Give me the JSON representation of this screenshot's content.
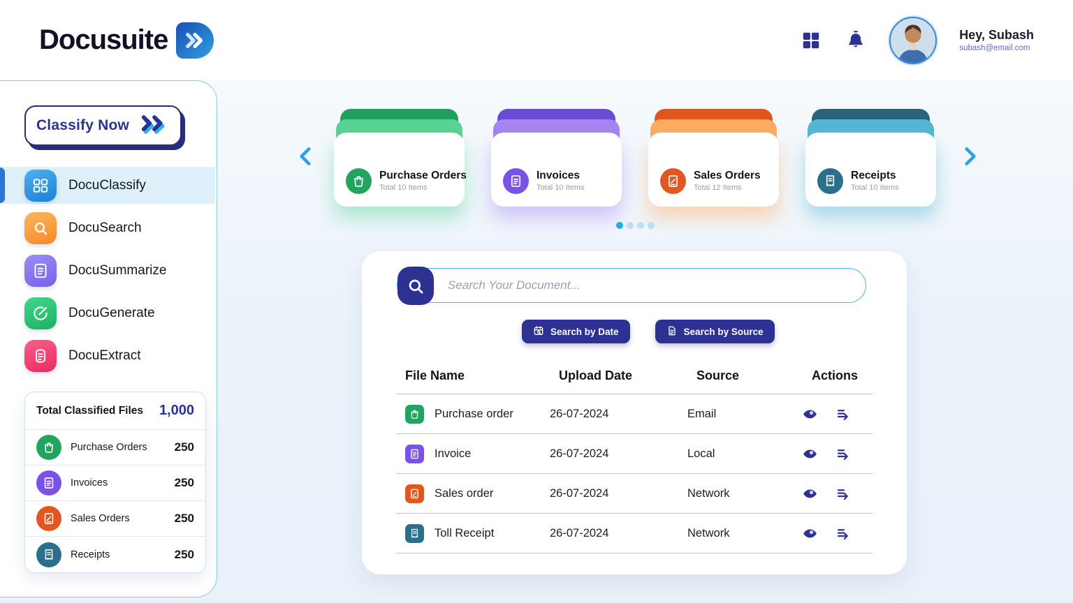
{
  "header": {
    "logo_text": "Docusuite",
    "greeting": "Hey, Subash",
    "email": "subash@email.com"
  },
  "sidebar": {
    "classify_label": "Classify Now",
    "items": [
      {
        "label": "DocuClassify",
        "icon": "classify-grid-icon",
        "active": true,
        "gradient": [
          "#4db0f2",
          "#1e7fd6"
        ]
      },
      {
        "label": "DocuSearch",
        "icon": "search-icon",
        "active": false,
        "gradient": [
          "#fbb55e",
          "#f68a28"
        ]
      },
      {
        "label": "DocuSummarize",
        "icon": "summarize-doc-icon",
        "active": false,
        "gradient": [
          "#9b8df6",
          "#7463e6"
        ]
      },
      {
        "label": "DocuGenerate",
        "icon": "generate-compose-icon",
        "active": false,
        "gradient": [
          "#43d68c",
          "#1cb262"
        ]
      },
      {
        "label": "DocuExtract",
        "icon": "extract-doc-icon",
        "active": false,
        "gradient": [
          "#f6608a",
          "#ec2a5e"
        ]
      }
    ],
    "stats": {
      "title": "Total Classified Files",
      "total": "1,000",
      "rows": [
        {
          "label": "Purchase Orders",
          "count": "250",
          "icon": "bag-icon",
          "color": "#21a55e"
        },
        {
          "label": "Invoices",
          "count": "250",
          "icon": "invoice-doc-icon",
          "color": "#7a52e8"
        },
        {
          "label": "Sales Orders",
          "count": "250",
          "icon": "contract-doc-icon",
          "color": "#e2571f"
        },
        {
          "label": "Receipts",
          "count": "250",
          "icon": "receipt-icon",
          "color": "#2a708b"
        }
      ]
    }
  },
  "carousel": {
    "cards": [
      {
        "title": "Purchase Orders",
        "subtitle": "Total 10 Items",
        "icon": "bag-icon",
        "back": "#1ea15c",
        "mid": "#57d395",
        "circle": "#21a55e"
      },
      {
        "title": "Invoices",
        "subtitle": "Total 10 Items",
        "icon": "invoice-doc-icon",
        "back": "#6a4bd3",
        "mid": "#a784f2",
        "circle": "#7a52e8"
      },
      {
        "title": "Sales Orders",
        "subtitle": "Total 12 Items",
        "icon": "contract-doc-icon",
        "back": "#df561d",
        "mid": "#fcab60",
        "circle": "#e2571f"
      },
      {
        "title": "Receipts",
        "subtitle": "Total 10 Items",
        "icon": "receipt-icon",
        "back": "#28657c",
        "mid": "#55b6d2",
        "circle": "#2a708b"
      }
    ],
    "dot_count": 4,
    "active_dot": 0
  },
  "search": {
    "placeholder": "Search Your Document...",
    "value": "",
    "filter_buttons": [
      {
        "label": "Search by Date",
        "icon": "calendar-search-icon"
      },
      {
        "label": "Search by Source",
        "icon": "source-doc-icon"
      }
    ]
  },
  "table": {
    "columns": [
      "File Name",
      "Upload Date",
      "Source",
      "Actions"
    ],
    "rows": [
      {
        "file": "Purchase order",
        "date": "26-07-2024",
        "source": "Email",
        "icon": "bag-icon",
        "color": "#21a55e"
      },
      {
        "file": "Invoice",
        "date": "26-07-2024",
        "source": "Local",
        "icon": "invoice-doc-icon",
        "color": "#7a52e8"
      },
      {
        "file": "Sales order",
        "date": "26-07-2024",
        "source": "Network",
        "icon": "contract-doc-icon",
        "color": "#e2571f"
      },
      {
        "file": "Toll Receipt",
        "date": "26-07-2024",
        "source": "Network",
        "icon": "receipt-icon",
        "color": "#2a708b"
      }
    ]
  },
  "colors": {
    "navy": "#2d3192",
    "accent_blue": "#2e9fe8",
    "active_item_bg": "#def0f9",
    "divider": "#b9c3ea",
    "search_border": "#45b7e9"
  }
}
